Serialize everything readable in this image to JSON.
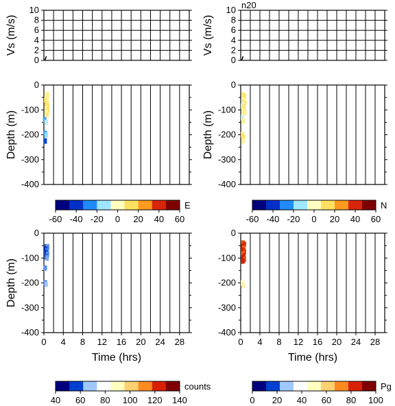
{
  "figure_label": "n20",
  "colors": {
    "grid": "#000000",
    "velocity_marker": "#000000",
    "blue_scale": [
      "#00007f",
      "#0030c8",
      "#1f8bff",
      "#9fe6ff",
      "#ffffc0",
      "#ffe060",
      "#ff9a20",
      "#d8250a",
      "#7f0000"
    ],
    "hot_scale": [
      "#00007f",
      "#0040d0",
      "#a0c8ff",
      "#ffffff",
      "#ffffc0",
      "#ffd070",
      "#ff8a20",
      "#d82000",
      "#800000"
    ]
  },
  "chart_data": [
    {
      "id": "vs-left",
      "type": "line",
      "ylabel": "Vs (m/s)",
      "ylim": [
        0,
        10
      ],
      "xlim": [
        0,
        30
      ],
      "y_ticks": [
        "0",
        "2",
        "4",
        "6",
        "8",
        "10"
      ],
      "grid": true,
      "series": [
        {
          "x": [
            0.2,
            0.5
          ],
          "y": [
            0.0,
            0.8
          ]
        }
      ]
    },
    {
      "id": "vs-right",
      "type": "line",
      "ylabel": "Vs (m/s)",
      "ylim": [
        0,
        10
      ],
      "xlim": [
        0,
        30
      ],
      "y_ticks": [
        "0",
        "2",
        "4",
        "6",
        "8",
        "10"
      ],
      "grid": true,
      "series": [
        {
          "x": [
            0.2,
            0.5
          ],
          "y": [
            0.0,
            0.8
          ]
        }
      ]
    },
    {
      "id": "depth-e",
      "type": "heatmap",
      "ylabel": "Depth (m)",
      "ylim": [
        -400,
        0
      ],
      "xlim": [
        0,
        30
      ],
      "y_ticks": [
        "0",
        "-100",
        "-200",
        "-300",
        "-400"
      ],
      "grid": true,
      "colorbar": {
        "label": "E",
        "ticks": [
          "-60",
          "-40",
          "-20",
          "0",
          "20",
          "40",
          "60"
        ],
        "range": [
          -60,
          60
        ],
        "scale": "blue_scale"
      },
      "points": [
        [
          0.4,
          -40,
          0
        ],
        [
          0.7,
          -40,
          8
        ],
        [
          0.3,
          -60,
          14
        ],
        [
          0.6,
          -60,
          8
        ],
        [
          0.4,
          -80,
          18
        ],
        [
          0.7,
          -80,
          12
        ],
        [
          0.4,
          -95,
          6
        ],
        [
          0.7,
          -100,
          14
        ],
        [
          0.4,
          -110,
          4
        ],
        [
          0.6,
          -120,
          10
        ],
        [
          0.1,
          -140,
          -26
        ],
        [
          0.4,
          -150,
          -10
        ],
        [
          0.2,
          -195,
          -30
        ],
        [
          0.4,
          -200,
          -16
        ],
        [
          0.2,
          -225,
          -42
        ]
      ]
    },
    {
      "id": "depth-n",
      "type": "heatmap",
      "ylabel": "Depth (m)",
      "ylim": [
        -400,
        0
      ],
      "xlim": [
        0,
        30
      ],
      "y_ticks": [
        "0",
        "-100",
        "-200",
        "-300",
        "-400"
      ],
      "grid": true,
      "colorbar": {
        "label": "N",
        "ticks": [
          "-60",
          "-40",
          "-20",
          "0",
          "20",
          "40",
          "60"
        ],
        "range": [
          -60,
          60
        ],
        "scale": "blue_scale"
      },
      "points": [
        [
          0.4,
          -40,
          10
        ],
        [
          0.7,
          -45,
          14
        ],
        [
          0.5,
          -60,
          6
        ],
        [
          0.8,
          -70,
          10
        ],
        [
          0.3,
          -85,
          -6
        ],
        [
          0.6,
          -90,
          12
        ],
        [
          0.4,
          -105,
          4
        ],
        [
          0.8,
          -110,
          8
        ],
        [
          0.3,
          -130,
          -8
        ],
        [
          0.5,
          -145,
          6
        ],
        [
          0.3,
          -200,
          10
        ],
        [
          0.5,
          -210,
          14
        ],
        [
          0.4,
          -225,
          6
        ]
      ]
    },
    {
      "id": "depth-counts",
      "type": "heatmap",
      "xlabel": "Time (hrs)",
      "ylabel": "Depth (m)",
      "ylim": [
        -400,
        0
      ],
      "xlim": [
        0,
        30
      ],
      "x_ticks": [
        "0",
        "4",
        "8",
        "12",
        "16",
        "20",
        "24",
        "28"
      ],
      "y_ticks": [
        "0",
        "-100",
        "-200",
        "-300",
        "-400"
      ],
      "grid": true,
      "colorbar": {
        "label": "counts",
        "ticks": [
          "40",
          "60",
          "80",
          "100",
          "120",
          "140"
        ],
        "range": [
          40,
          140
        ],
        "scale": "hot_scale"
      },
      "points": [
        [
          0.4,
          -55,
          55
        ],
        [
          0.7,
          -55,
          60
        ],
        [
          0.3,
          -65,
          50
        ],
        [
          0.6,
          -70,
          58
        ],
        [
          0.4,
          -80,
          52
        ],
        [
          0.7,
          -85,
          60
        ],
        [
          0.4,
          -95,
          55
        ],
        [
          0.6,
          -100,
          62
        ],
        [
          0.2,
          -140,
          60
        ],
        [
          0.2,
          -200,
          58
        ],
        [
          0.4,
          -205,
          65
        ]
      ]
    },
    {
      "id": "depth-pg",
      "type": "heatmap",
      "xlabel": "Time (hrs)",
      "ylabel": "",
      "ylim": [
        -400,
        0
      ],
      "xlim": [
        0,
        30
      ],
      "x_ticks": [
        "0",
        "4",
        "8",
        "12",
        "16",
        "20",
        "24",
        "28"
      ],
      "y_ticks": [
        "0",
        "-100",
        "-200",
        "-300",
        "-400"
      ],
      "grid": true,
      "colorbar": {
        "label": "Pg",
        "ticks": [
          "0",
          "20",
          "40",
          "60",
          "80",
          "100"
        ],
        "range": [
          0,
          100
        ],
        "scale": "hot_scale"
      },
      "points": [
        [
          0.4,
          -40,
          82
        ],
        [
          0.7,
          -45,
          86
        ],
        [
          0.3,
          -55,
          90
        ],
        [
          0.6,
          -60,
          80
        ],
        [
          0.4,
          -70,
          88
        ],
        [
          0.7,
          -75,
          84
        ],
        [
          0.4,
          -85,
          78
        ],
        [
          0.6,
          -90,
          86
        ],
        [
          0.4,
          -100,
          90
        ],
        [
          0.7,
          -105,
          82
        ],
        [
          0.4,
          -112,
          88
        ],
        [
          0.3,
          -200,
          50
        ],
        [
          0.4,
          -210,
          54
        ]
      ]
    }
  ]
}
